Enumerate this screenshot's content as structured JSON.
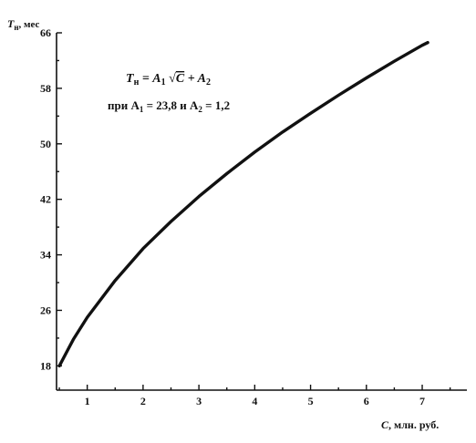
{
  "chart_data": {
    "type": "line",
    "title": "",
    "ylabel": "T",
    "ylabel_sub": "н",
    "ylabel_unit": ", мес",
    "xlabel": "C",
    "xlabel_unit": ", млн. руб.",
    "xlim": [
      0.45,
      7.8
    ],
    "ylim": [
      14.5,
      66
    ],
    "x_ticks": [
      1,
      2,
      3,
      4,
      5,
      6,
      7
    ],
    "x_tick_labels": [
      "1",
      "2",
      "3",
      "4",
      "5",
      "6",
      "7"
    ],
    "y_ticks": [
      18,
      26,
      34,
      42,
      50,
      58,
      66
    ],
    "y_tick_labels": [
      "18",
      "26",
      "34",
      "42",
      "50",
      "58",
      "66"
    ],
    "grid": false,
    "legend": "none",
    "annotation": {
      "line1": {
        "lhs": "T",
        "lhs_sub": "н",
        "eq": " = A",
        "sub1": "1",
        "sqrt_sign": " √",
        "radicand": "C",
        "plus": " + A",
        "sub2": "2"
      },
      "line2": {
        "prefix": "при A",
        "sub1": "1",
        "mid": " = 23,8 и A",
        "sub2": "2",
        "suffix": " = 1,2"
      }
    },
    "series": [
      {
        "x": [
          0.5,
          0.75,
          1.0,
          1.5,
          2.0,
          2.5,
          3.0,
          3.5,
          4.0,
          4.5,
          5.0,
          5.5,
          6.0,
          6.5,
          7.0,
          7.1
        ],
        "y": [
          18.0,
          21.8,
          25.0,
          30.3,
          34.9,
          38.8,
          42.4,
          45.7,
          48.8,
          51.7,
          54.4,
          57.0,
          59.5,
          61.9,
          64.2,
          64.6
        ]
      }
    ]
  }
}
